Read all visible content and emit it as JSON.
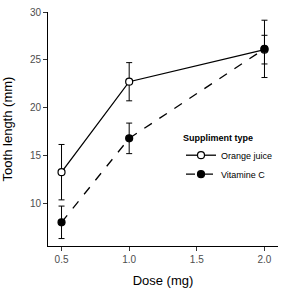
{
  "chart_data": {
    "type": "line",
    "x_label": "Dose (mg)",
    "y_label": "Tooth length (mm)",
    "x": [
      0.5,
      1,
      2
    ],
    "series": [
      {
        "name": "Orange juice",
        "color": "#000000",
        "marker": "circle-open",
        "line_style": "solid",
        "values": [
          13.23,
          22.7,
          26.06
        ],
        "errors": [
          2.9,
          2.0,
          1.5
        ]
      },
      {
        "name": "Vitamine C",
        "color": "#000000",
        "marker": "circle",
        "line_style": "dash",
        "values": [
          7.98,
          16.77,
          26.14
        ],
        "errors": [
          1.7,
          1.6,
          3.0
        ]
      }
    ],
    "legend_title": "Suppliment type",
    "legend": "right",
    "xlim": [
      0.4,
      2.1
    ],
    "xticks": [
      0.5,
      {
        "value": 1,
        "label": "1.0"
      },
      1.5,
      {
        "value": 2,
        "label": "2.0"
      }
    ],
    "ylim": [
      5.5,
      30
    ],
    "yticks": [
      10,
      15,
      20,
      25,
      30
    ],
    "grid": false
  }
}
